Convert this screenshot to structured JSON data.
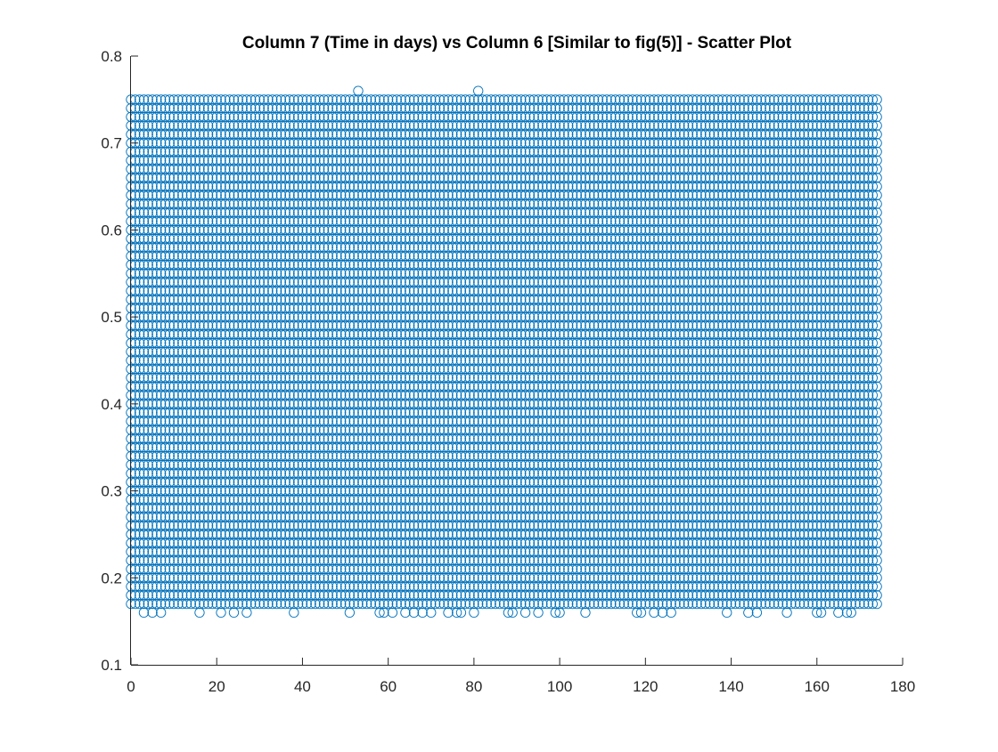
{
  "chart_data": {
    "type": "scatter",
    "title": "Column 7 (Time in days) vs Column 6 [Similar to fig(5)] - Scatter Plot",
    "xlabel": "",
    "ylabel": "",
    "xlim": [
      0,
      180
    ],
    "ylim": [
      0.1,
      0.8
    ],
    "xticks": [
      "0",
      "20",
      "40",
      "60",
      "80",
      "100",
      "120",
      "140",
      "160",
      "180"
    ],
    "yticks": [
      "0.1",
      "0.2",
      "0.3",
      "0.4",
      "0.5",
      "0.6",
      "0.7",
      "0.8"
    ],
    "marker": "circle-open",
    "color": "#0072BD",
    "grid": false,
    "legend": "none",
    "description_data": {
      "x_range": [
        0,
        174
      ],
      "x_step": 1,
      "y_min": 0.16,
      "y_max": 0.76,
      "y_step": 0.01
    },
    "series": [
      {
        "points_dense_band": "every integer day from 0 to 174, y values 0.17 to 0.75 in steps of 0.01"
      }
    ],
    "outliers_low": [
      [
        3,
        0.16
      ],
      [
        5,
        0.16
      ],
      [
        7,
        0.16
      ],
      [
        16,
        0.16
      ],
      [
        21,
        0.16
      ],
      [
        24,
        0.16
      ],
      [
        27,
        0.16
      ],
      [
        38,
        0.16
      ],
      [
        51,
        0.16
      ],
      [
        58,
        0.16
      ],
      [
        59,
        0.16
      ],
      [
        61,
        0.16
      ],
      [
        64,
        0.16
      ],
      [
        66,
        0.16
      ],
      [
        68,
        0.16
      ],
      [
        70,
        0.16
      ],
      [
        74,
        0.16
      ],
      [
        76,
        0.16
      ],
      [
        77,
        0.16
      ],
      [
        80,
        0.16
      ],
      [
        88,
        0.16
      ],
      [
        89,
        0.16
      ],
      [
        92,
        0.16
      ],
      [
        95,
        0.16
      ],
      [
        99,
        0.16
      ],
      [
        100,
        0.16
      ],
      [
        106,
        0.16
      ],
      [
        118,
        0.16
      ],
      [
        119,
        0.16
      ],
      [
        122,
        0.16
      ],
      [
        124,
        0.16
      ],
      [
        126,
        0.16
      ],
      [
        139,
        0.16
      ],
      [
        144,
        0.16
      ],
      [
        146,
        0.16
      ],
      [
        153,
        0.16
      ],
      [
        160,
        0.16
      ],
      [
        161,
        0.16
      ],
      [
        165,
        0.16
      ],
      [
        167,
        0.16
      ],
      [
        168,
        0.16
      ]
    ],
    "outliers_high": [
      [
        53,
        0.76
      ],
      [
        81,
        0.76
      ]
    ]
  }
}
